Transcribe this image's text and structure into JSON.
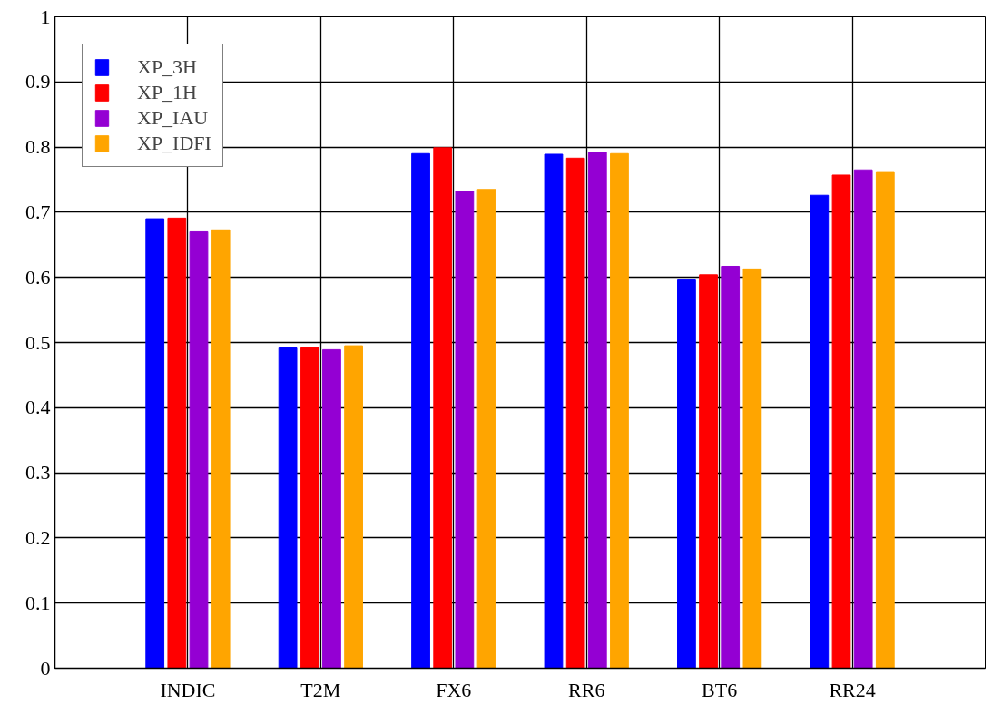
{
  "chart_data": {
    "type": "bar",
    "categories": [
      "INDIC",
      "T2M",
      "FX6",
      "RR6",
      "BT6",
      "RR24"
    ],
    "series": [
      {
        "name": "XP_3H",
        "color": "#0000ff",
        "values": [
          0.69,
          0.493,
          0.79,
          0.789,
          0.596,
          0.726
        ]
      },
      {
        "name": "XP_1H",
        "color": "#ff0000",
        "values": [
          0.691,
          0.493,
          0.799,
          0.783,
          0.604,
          0.757
        ]
      },
      {
        "name": "XP_IAU",
        "color": "#9400d3",
        "values": [
          0.67,
          0.489,
          0.732,
          0.792,
          0.617,
          0.765
        ]
      },
      {
        "name": "XP_IDFI",
        "color": "#ffa500",
        "values": [
          0.673,
          0.495,
          0.735,
          0.79,
          0.613,
          0.761
        ]
      }
    ],
    "ylim": [
      0,
      1
    ],
    "yticks": [
      0,
      0.1,
      0.2,
      0.3,
      0.4,
      0.5,
      0.6,
      0.7,
      0.8,
      0.9,
      1
    ],
    "grid": true,
    "legend": "top left"
  }
}
